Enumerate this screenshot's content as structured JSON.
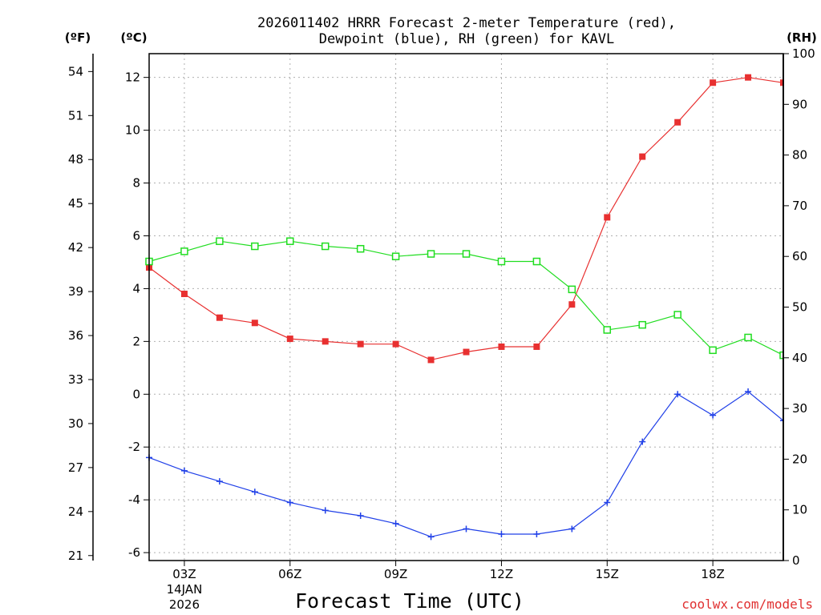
{
  "chart_data": {
    "type": "line",
    "title_line1": "2026011402 HRRR Forecast 2-meter Temperature (red),",
    "title_line2": "Dewpoint (blue), RH (green) for KAVL",
    "xlabel": "Forecast Time (UTC)",
    "credit": "coolwx.com/models",
    "unit_f": "(ºF)",
    "unit_c": "(ºC)",
    "unit_rh": "(RH)",
    "x": [
      2,
      3,
      4,
      5,
      6,
      7,
      8,
      9,
      10,
      11,
      12,
      13,
      14,
      15,
      16,
      17,
      18,
      19,
      20
    ],
    "xlim": [
      2,
      20
    ],
    "x_ticks": [
      {
        "x": 3,
        "label": "03Z",
        "sub1": "14JAN",
        "sub2": "2026"
      },
      {
        "x": 6,
        "label": "06Z",
        "sub1": "",
        "sub2": ""
      },
      {
        "x": 9,
        "label": "09Z",
        "sub1": "",
        "sub2": ""
      },
      {
        "x": 12,
        "label": "12Z",
        "sub1": "",
        "sub2": ""
      },
      {
        "x": 15,
        "label": "15Z",
        "sub1": "",
        "sub2": ""
      },
      {
        "x": 18,
        "label": "18Z",
        "sub1": "",
        "sub2": ""
      }
    ],
    "ylim_c": [
      -6.3,
      12.9
    ],
    "y_ticks_c": [
      "-6",
      "-4",
      "-2",
      "0",
      "2",
      "4",
      "6",
      "8",
      "10",
      "12"
    ],
    "y_ticks_f": [
      "21",
      "24",
      "27",
      "30",
      "33",
      "36",
      "39",
      "42",
      "45",
      "48",
      "51",
      "54"
    ],
    "ylim_rh": [
      0,
      100
    ],
    "y_ticks_rh": [
      "0",
      "10",
      "20",
      "30",
      "40",
      "50",
      "60",
      "70",
      "80",
      "90",
      "100"
    ],
    "series": [
      {
        "name": "Temperature",
        "axis": "c",
        "color": "#e83030",
        "marker": "filled-square",
        "values": [
          4.8,
          3.8,
          2.9,
          2.7,
          2.1,
          2.0,
          1.9,
          1.9,
          1.3,
          1.6,
          1.8,
          1.8,
          3.4,
          6.7,
          9.0,
          10.3,
          11.8,
          12.0,
          11.8
        ]
      },
      {
        "name": "Dewpoint",
        "axis": "c",
        "color": "#2040e8",
        "marker": "plus",
        "values": [
          -2.4,
          -2.9,
          -3.3,
          -3.7,
          -4.1,
          -4.4,
          -4.6,
          -4.9,
          -5.4,
          -5.1,
          -5.3,
          -5.3,
          -5.1,
          -4.1,
          -1.8,
          0.0,
          -0.8,
          0.1,
          -1.0
        ]
      },
      {
        "name": "RH",
        "axis": "rh",
        "color": "#20dd20",
        "marker": "open-square",
        "values": [
          59,
          61,
          63,
          62,
          63,
          62,
          61.5,
          60,
          60.5,
          60.5,
          59,
          59,
          53.5,
          45.5,
          46.5,
          48.5,
          41.5,
          44,
          40.5
        ]
      }
    ]
  }
}
